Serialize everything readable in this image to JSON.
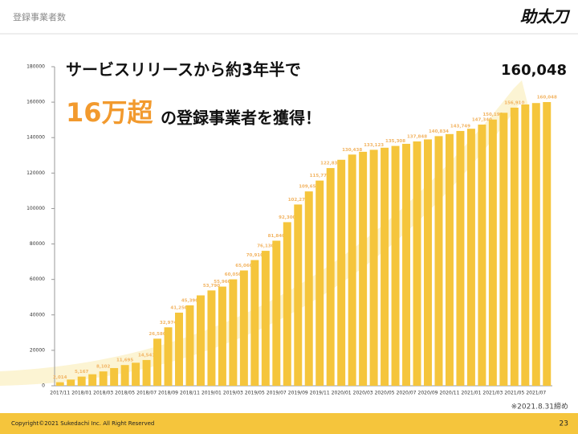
{
  "header": {
    "title": "登録事業者数",
    "logo": "助太刀"
  },
  "headline": {
    "line1": "サービスリリースから約3年半で",
    "highlight": "16万超",
    "line2": "の登録事業者を獲得！",
    "big_number": "160,048"
  },
  "chart_data": {
    "type": "bar",
    "color": "#f5c53c",
    "label_color": "#f2b463",
    "categories": [
      "2017/11",
      null,
      "2018/01",
      null,
      "2018/03",
      null,
      "2018/05",
      null,
      "2018/07",
      null,
      "2018/09",
      null,
      "2018/11",
      null,
      "2019/01",
      null,
      "2019/03",
      null,
      "2019/05",
      null,
      "2019/07",
      null,
      "2019/09",
      null,
      "2019/11",
      null,
      "2020/01",
      null,
      "2020/03",
      null,
      "2020/05",
      null,
      "2020/07",
      null,
      "2020/09",
      null,
      "2020/11",
      null,
      "2021/01",
      null,
      "2021/03",
      null,
      "2021/05",
      null,
      "2021/07",
      null
    ],
    "values": [
      2014,
      3500,
      5167,
      6500,
      8102,
      10000,
      11695,
      13000,
      14541,
      26580,
      32974,
      41250,
      45390,
      51000,
      53790,
      55960,
      60050,
      65060,
      70910,
      76130,
      81840,
      92300,
      102270,
      109650,
      115770,
      122830,
      127500,
      130438,
      132000,
      133123,
      134300,
      135308,
      136500,
      137848,
      139000,
      140834,
      142000,
      143749,
      145000,
      147340,
      150190,
      154000,
      156910,
      158700,
      159500,
      160048
    ],
    "value_labels": [
      "2,014",
      null,
      "5,167",
      null,
      "8,102",
      null,
      "11,695",
      null,
      "14,541",
      "26,580",
      "32,974",
      "41,250",
      "45,390",
      null,
      "53,790",
      "55,960",
      "60,050",
      "65,060",
      "70,910",
      "76,130",
      "81,840",
      "92,300",
      "102,270",
      "109,650",
      "115,770",
      "122,830",
      null,
      "130,438",
      null,
      "133,123",
      null,
      "135,308",
      null,
      "137,848",
      null,
      "140,834",
      null,
      "143,749",
      null,
      "147,340",
      "150,190",
      null,
      "156,910",
      null,
      null,
      "160,048"
    ],
    "ylim": [
      0,
      180000
    ],
    "yticks": [
      0,
      20000,
      40000,
      60000,
      80000,
      100000,
      120000,
      140000,
      160000,
      180000
    ]
  },
  "note": "※2021.8.31締め",
  "footer": {
    "copyright": "Copyright©2021 Sukedachi Inc. All Right Reserved",
    "page": "23"
  }
}
